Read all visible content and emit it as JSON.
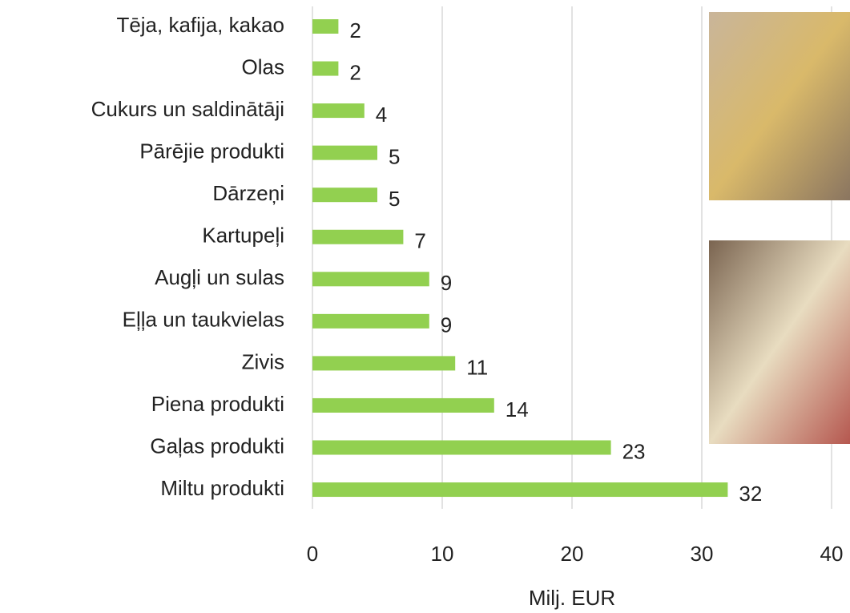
{
  "chart_data": {
    "type": "bar",
    "orientation": "horizontal",
    "categories": [
      "Tēja, kafija, kakao",
      "Olas",
      "Cukurs un saldinātāji",
      "Pārējie produkti",
      "Dārzeņi",
      "Kartupeļi",
      "Augļi un sulas",
      "Eļļa un taukvielas",
      "Zivis",
      "Piena produkti",
      "Gaļas produkti",
      "Miltu produkti"
    ],
    "values": [
      2,
      2,
      4,
      5,
      5,
      7,
      9,
      9,
      11,
      14,
      23,
      32
    ],
    "color": "#92d050",
    "xlim": [
      0,
      40
    ],
    "xticks": [
      0,
      10,
      20,
      30,
      40
    ],
    "x_label": "Milj. EUR",
    "grid": true
  }
}
